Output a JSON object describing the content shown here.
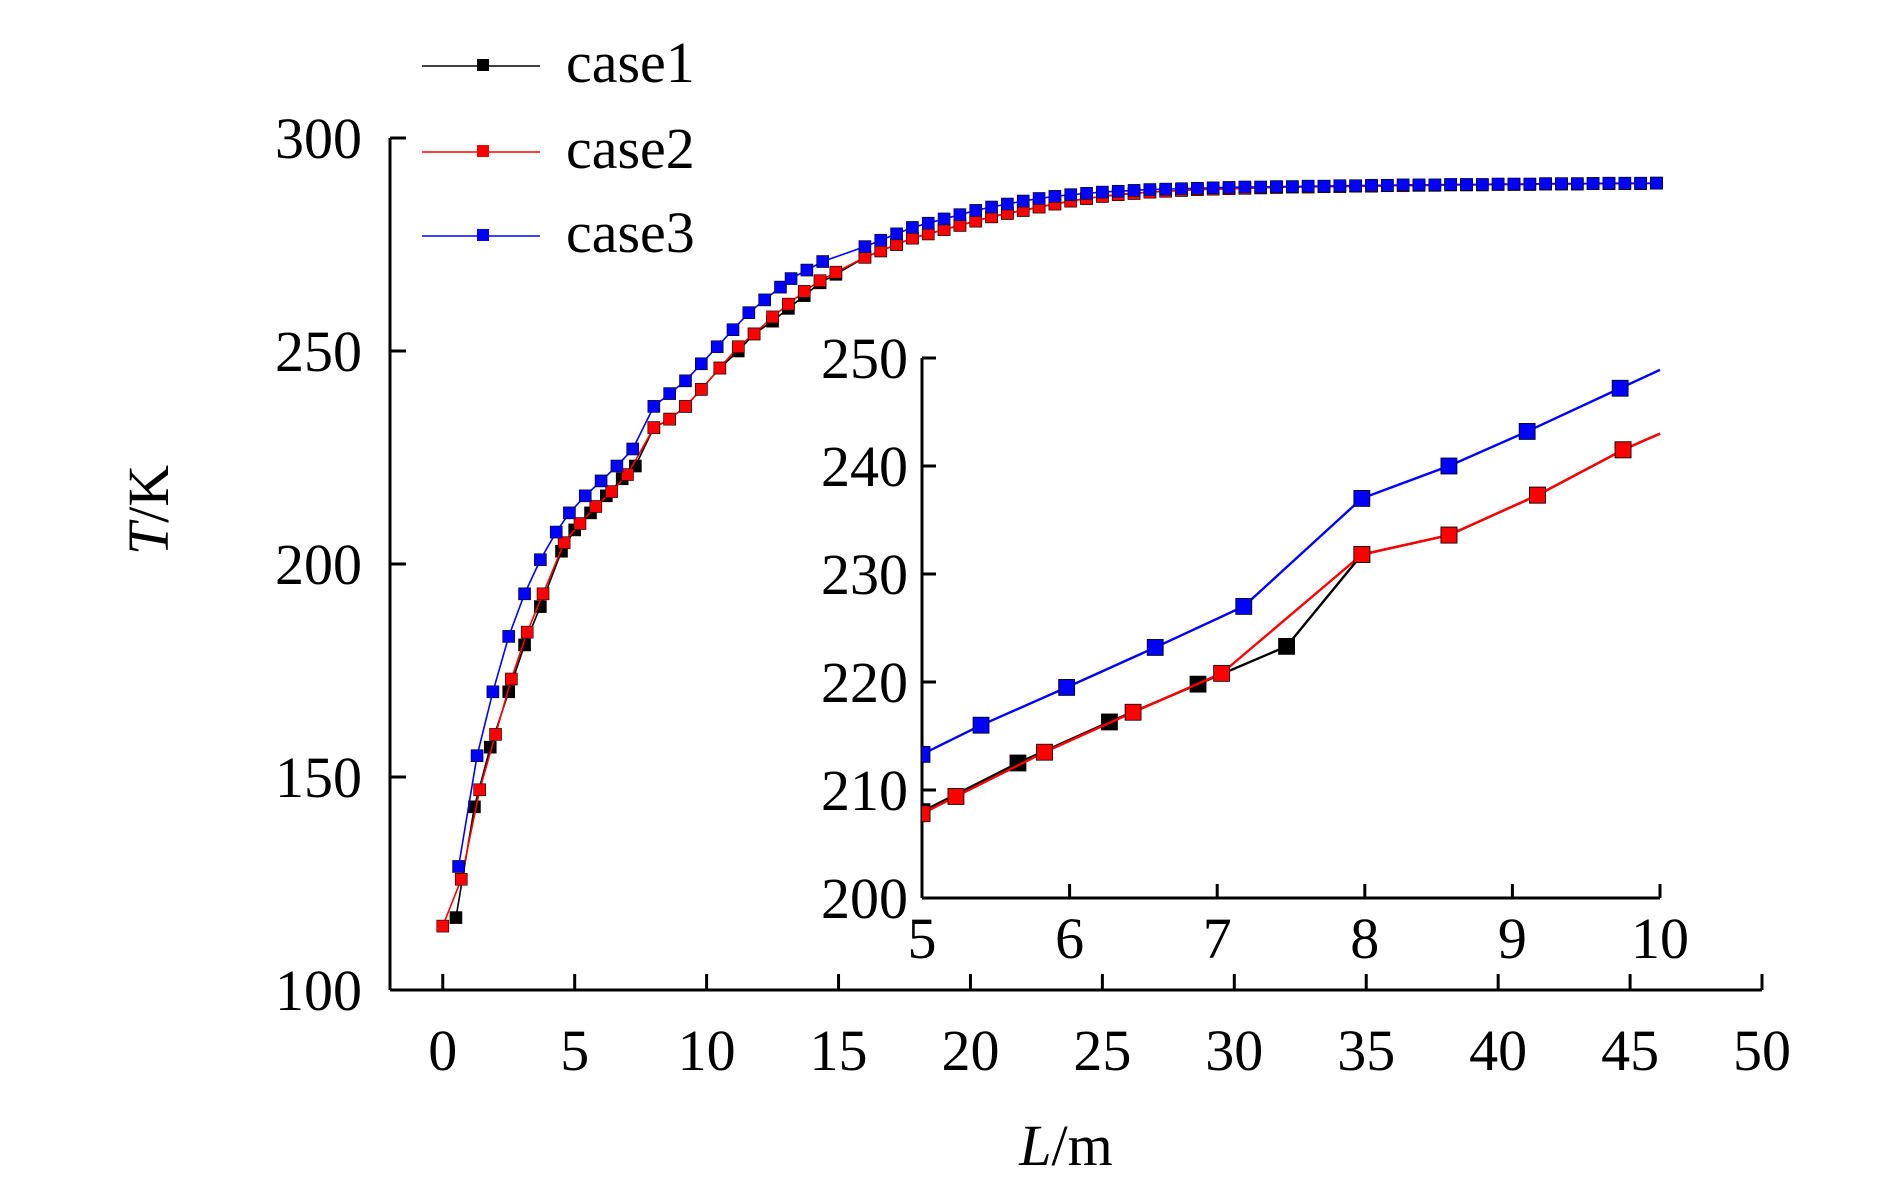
{
  "chart_data": [
    {
      "type": "line",
      "title": "",
      "xlabel": {
        "var": "L",
        "unit": "/m"
      },
      "ylabel": {
        "var": "T",
        "unit": "/K"
      },
      "xlim": [
        -2,
        50
      ],
      "ylim": [
        100,
        300
      ],
      "xticks": [
        0,
        5,
        10,
        15,
        20,
        25,
        30,
        35,
        40,
        45,
        50
      ],
      "yticks": [
        100,
        150,
        200,
        250,
        300
      ],
      "legend_position": "top-left",
      "series": [
        {
          "name": "case1",
          "color": "#000000",
          "x": [
            0.5,
            1.2,
            1.8,
            2.5,
            3.1,
            3.7,
            4.5,
            5.0,
            5.6,
            6.2,
            6.8,
            7.3,
            8.0,
            8.6,
            9.2,
            9.8,
            10.5,
            11.2,
            11.8,
            12.5,
            13.1,
            13.7,
            14.3,
            14.9,
            16.0,
            16.6,
            17.2,
            17.8,
            18.4,
            19.0,
            19.6,
            20.2,
            20.8,
            21.4,
            22.0,
            22.6,
            23.2,
            23.8,
            24.4,
            25.0,
            25.6,
            26.2,
            26.8,
            27.4,
            28.0,
            28.6,
            29.2,
            29.8,
            30.4,
            31.0,
            31.6,
            32.2,
            32.8,
            33.4,
            34.0,
            34.6,
            35.2,
            35.8,
            36.4,
            37.0,
            37.6,
            38.2,
            38.8,
            39.4,
            40.0,
            40.6,
            41.2,
            41.8,
            42.4,
            43.0,
            43.6,
            44.2,
            44.8,
            45.4,
            46.0
          ],
          "y": [
            117,
            143,
            157,
            170,
            181,
            190,
            203,
            208,
            212,
            216,
            220,
            223,
            232,
            234,
            237,
            241,
            246,
            250,
            254,
            257,
            260,
            263,
            266,
            268,
            272,
            273.5,
            275,
            276.5,
            277.5,
            278.5,
            279.5,
            280.5,
            281.5,
            282.3,
            283,
            283.8,
            284.5,
            285.2,
            285.8,
            286.3,
            286.7,
            287,
            287.3,
            287.5,
            287.7,
            287.9,
            288,
            288.1,
            288.2,
            288.3,
            288.4,
            288.5,
            288.5,
            288.6,
            288.6,
            288.7,
            288.7,
            288.8,
            288.8,
            288.9,
            288.9,
            289,
            289,
            289,
            289.1,
            289.1,
            289.1,
            289.2,
            289.2,
            289.2,
            289.3,
            289.3,
            289.3,
            289.3,
            289.4
          ]
        },
        {
          "name": "case2",
          "color": "#ff0000",
          "x": [
            0.0,
            0.7,
            1.4,
            2.0,
            2.6,
            3.2,
            3.8,
            4.6,
            5.2,
            5.8,
            6.4,
            7.0,
            8.0,
            8.6,
            9.2,
            9.8,
            10.5,
            11.2,
            11.8,
            12.5,
            13.1,
            13.7,
            14.3,
            14.9,
            16.0,
            16.6,
            17.2,
            17.8,
            18.4,
            19.0,
            19.6,
            20.2,
            20.8,
            21.4,
            22.0,
            22.6,
            23.2,
            23.8,
            24.4,
            25.0,
            25.6,
            26.2,
            26.8,
            27.4,
            28.0,
            28.6,
            29.2,
            29.8,
            30.4,
            31.0,
            31.6,
            32.2,
            32.8,
            33.4,
            34.0,
            34.6,
            35.2,
            35.8,
            36.4,
            37.0,
            37.6,
            38.2,
            38.8,
            39.4,
            40.0,
            40.6,
            41.2,
            41.8,
            42.4,
            43.0,
            43.6,
            44.2,
            44.8,
            45.4,
            46.0
          ],
          "y": [
            115,
            126,
            147,
            160,
            173,
            184,
            193,
            205,
            209.5,
            213.5,
            217,
            221,
            232,
            234,
            237,
            241,
            246,
            251,
            254,
            258,
            261,
            264,
            266.5,
            268.5,
            272,
            273.5,
            275,
            276.5,
            277.5,
            278.5,
            279.5,
            280.5,
            281.5,
            282.3,
            283,
            283.8,
            284.5,
            285.2,
            285.8,
            286.3,
            286.7,
            287,
            287.3,
            287.5,
            287.7,
            287.9,
            288,
            288.1,
            288.2,
            288.3,
            288.4,
            288.5,
            288.5,
            288.6,
            288.6,
            288.7,
            288.7,
            288.8,
            288.8,
            288.9,
            288.9,
            289,
            289,
            289,
            289.1,
            289.1,
            289.1,
            289.2,
            289.2,
            289.2,
            289.3,
            289.3,
            289.3,
            289.3,
            289.4
          ]
        },
        {
          "name": "case3",
          "color": "#0000ff",
          "x": [
            0.6,
            1.3,
            1.9,
            2.5,
            3.1,
            3.7,
            4.3,
            4.8,
            5.4,
            6.0,
            6.6,
            7.2,
            8.0,
            8.6,
            9.2,
            9.8,
            10.4,
            11.0,
            11.6,
            12.2,
            12.8,
            13.2,
            13.8,
            14.4,
            16.0,
            16.6,
            17.2,
            17.8,
            18.4,
            19.0,
            19.6,
            20.2,
            20.8,
            21.4,
            22.0,
            22.6,
            23.2,
            23.8,
            24.4,
            25.0,
            25.6,
            26.2,
            26.8,
            27.4,
            28.0,
            28.6,
            29.2,
            29.8,
            30.4,
            31.0,
            31.6,
            32.2,
            32.8,
            33.4,
            34.0,
            34.6,
            35.2,
            35.8,
            36.4,
            37.0,
            37.6,
            38.2,
            38.8,
            39.4,
            40.0,
            40.6,
            41.2,
            41.8,
            42.4,
            43.0,
            43.6,
            44.2,
            44.8,
            45.4,
            46.0
          ],
          "y": [
            129,
            155,
            170,
            183,
            193,
            201,
            207.5,
            212,
            216,
            219.5,
            223,
            227,
            237,
            240,
            243,
            247,
            251,
            255,
            259,
            262,
            265,
            267,
            269,
            271,
            274.5,
            276,
            277.5,
            279,
            280,
            281,
            282,
            283,
            283.8,
            284.5,
            285.2,
            285.8,
            286.3,
            286.7,
            287,
            287.3,
            287.5,
            287.7,
            287.9,
            288,
            288.1,
            288.2,
            288.3,
            288.4,
            288.5,
            288.5,
            288.6,
            288.6,
            288.7,
            288.7,
            288.8,
            288.8,
            288.9,
            288.9,
            289,
            289,
            289,
            289.1,
            289.1,
            289.1,
            289.2,
            289.2,
            289.2,
            289.3,
            289.3,
            289.3,
            289.3,
            289.4,
            289.4,
            289.4,
            289.4
          ]
        }
      ]
    },
    {
      "type": "line",
      "title": "",
      "xlabel": "",
      "ylabel": "",
      "xlim": [
        5,
        10
      ],
      "ylim": [
        200,
        250
      ],
      "xticks": [
        5,
        6,
        7,
        8,
        9,
        10
      ],
      "yticks": [
        200,
        210,
        220,
        230,
        240,
        250
      ],
      "series": [
        {
          "name": "case1",
          "color": "#000000",
          "x": [
            5.0,
            5.65,
            6.27,
            6.87,
            7.47,
            7.98,
            8.57,
            9.17,
            9.75,
            10.0
          ],
          "y": [
            208,
            212.5,
            216.3,
            219.8,
            223.3,
            231.8,
            233.6,
            237.3,
            241.5,
            243
          ]
        },
        {
          "name": "case2",
          "color": "#ff0000",
          "x": [
            5.0,
            5.23,
            5.83,
            6.43,
            7.03,
            7.98,
            8.57,
            9.17,
            9.75,
            10.0
          ],
          "y": [
            207.8,
            209.4,
            213.5,
            217.2,
            220.8,
            231.8,
            233.6,
            237.3,
            241.5,
            243
          ]
        },
        {
          "name": "case3",
          "color": "#0000ff",
          "x": [
            5.0,
            5.4,
            5.98,
            6.58,
            7.18,
            7.98,
            8.57,
            9.1,
            9.73,
            10.0
          ],
          "y": [
            213.3,
            216,
            219.5,
            223.2,
            227,
            237,
            240,
            243.2,
            247.2,
            248.9
          ]
        }
      ]
    }
  ]
}
